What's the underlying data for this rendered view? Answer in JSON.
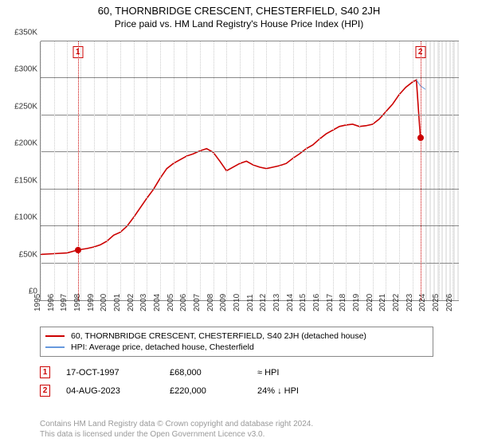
{
  "title": "60, THORNBRIDGE CRESCENT, CHESTERFIELD, S40 2JH",
  "subtitle": "Price paid vs. HM Land Registry's House Price Index (HPI)",
  "chart": {
    "type": "line",
    "xlim": [
      1995,
      2026.5
    ],
    "ylim": [
      0,
      350000
    ],
    "ytick_step": 50000,
    "ytick_prefix": "£",
    "ytick_suffix": "K",
    "xtick_step": 1,
    "xtick_labels": [
      1995,
      1996,
      1997,
      1998,
      1999,
      2000,
      2001,
      2002,
      2003,
      2004,
      2005,
      2006,
      2007,
      2008,
      2009,
      2010,
      2011,
      2012,
      2013,
      2014,
      2015,
      2016,
      2017,
      2018,
      2019,
      2020,
      2021,
      2022,
      2023,
      2024,
      2025,
      2026
    ],
    "grid_color": "#cccccc",
    "axis_color": "#888888",
    "background_color": "#ffffff",
    "hatch_start_x": 2024,
    "series": [
      {
        "name": "property",
        "color": "#cc0000",
        "width": 1.6,
        "points": [
          [
            1995.0,
            62000
          ],
          [
            1996.0,
            63000
          ],
          [
            1997.0,
            64000
          ],
          [
            1997.8,
            68000
          ],
          [
            1998.5,
            70000
          ],
          [
            1999.0,
            72000
          ],
          [
            1999.5,
            75000
          ],
          [
            2000.0,
            80000
          ],
          [
            2000.5,
            88000
          ],
          [
            2001.0,
            92000
          ],
          [
            2001.5,
            100000
          ],
          [
            2002.0,
            112000
          ],
          [
            2002.5,
            125000
          ],
          [
            2003.0,
            138000
          ],
          [
            2003.5,
            150000
          ],
          [
            2004.0,
            165000
          ],
          [
            2004.5,
            178000
          ],
          [
            2005.0,
            185000
          ],
          [
            2005.5,
            190000
          ],
          [
            2006.0,
            195000
          ],
          [
            2006.5,
            198000
          ],
          [
            2007.0,
            202000
          ],
          [
            2007.5,
            205000
          ],
          [
            2008.0,
            200000
          ],
          [
            2008.5,
            188000
          ],
          [
            2009.0,
            175000
          ],
          [
            2009.5,
            180000
          ],
          [
            2010.0,
            185000
          ],
          [
            2010.5,
            188000
          ],
          [
            2011.0,
            183000
          ],
          [
            2011.5,
            180000
          ],
          [
            2012.0,
            178000
          ],
          [
            2012.5,
            180000
          ],
          [
            2013.0,
            182000
          ],
          [
            2013.5,
            185000
          ],
          [
            2014.0,
            192000
          ],
          [
            2014.5,
            198000
          ],
          [
            2015.0,
            205000
          ],
          [
            2015.5,
            210000
          ],
          [
            2016.0,
            218000
          ],
          [
            2016.5,
            225000
          ],
          [
            2017.0,
            230000
          ],
          [
            2017.5,
            235000
          ],
          [
            2018.0,
            237000
          ],
          [
            2018.5,
            238000
          ],
          [
            2019.0,
            235000
          ],
          [
            2019.5,
            236000
          ],
          [
            2020.0,
            238000
          ],
          [
            2020.5,
            245000
          ],
          [
            2021.0,
            255000
          ],
          [
            2021.5,
            265000
          ],
          [
            2022.0,
            278000
          ],
          [
            2022.5,
            288000
          ],
          [
            2023.0,
            295000
          ],
          [
            2023.3,
            298000
          ],
          [
            2023.6,
            220000
          ]
        ]
      },
      {
        "name": "hpi",
        "color": "#6699dd",
        "width": 1,
        "points": [
          [
            2023.3,
            298000
          ],
          [
            2023.6,
            290000
          ],
          [
            2024.0,
            285000
          ]
        ]
      }
    ],
    "markers": [
      {
        "x": 1997.8,
        "y": 68000,
        "index": 1,
        "color": "#cc0000"
      },
      {
        "x": 2023.6,
        "y": 220000,
        "index": 2,
        "color": "#cc0000"
      }
    ]
  },
  "legend": {
    "items": [
      {
        "color": "#cc0000",
        "label": "60, THORNBRIDGE CRESCENT, CHESTERFIELD, S40 2JH (detached house)"
      },
      {
        "color": "#6699dd",
        "label": "HPI: Average price, detached house, Chesterfield"
      }
    ]
  },
  "sales": [
    {
      "index": "1",
      "date": "17-OCT-1997",
      "price": "£68,000",
      "diff": "≈ HPI"
    },
    {
      "index": "2",
      "date": "04-AUG-2023",
      "price": "£220,000",
      "diff": "24% ↓ HPI"
    }
  ],
  "footnote_l1": "Contains HM Land Registry data © Crown copyright and database right 2024.",
  "footnote_l2": "This data is licensed under the Open Government Licence v3.0."
}
